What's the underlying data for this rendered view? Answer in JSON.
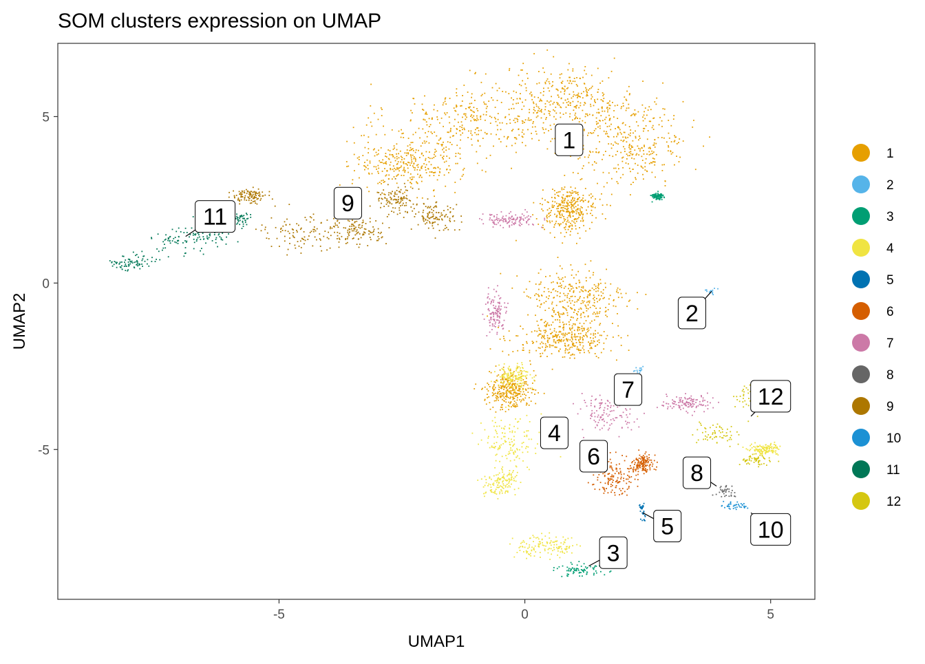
{
  "chart_data": {
    "type": "scatter",
    "title": "SOM clusters expression on UMAP",
    "xlabel": "UMAP1",
    "ylabel": "UMAP2",
    "xlim": [
      -9.5,
      5.9
    ],
    "ylim": [
      -9.5,
      7.2
    ],
    "x_ticks": [
      -5,
      0,
      5
    ],
    "x_tick_labels": [
      "-5",
      "0",
      "5"
    ],
    "y_ticks": [
      5,
      0,
      -5
    ],
    "y_tick_labels": [
      "5",
      "0",
      "-5"
    ],
    "grid": false,
    "legend_position": "right",
    "legend_title": "",
    "series": [
      {
        "name": "1",
        "color": "#E69F00"
      },
      {
        "name": "2",
        "color": "#56B4E9"
      },
      {
        "name": "3",
        "color": "#009E73"
      },
      {
        "name": "4",
        "color": "#F0E442"
      },
      {
        "name": "5",
        "color": "#0072B2"
      },
      {
        "name": "6",
        "color": "#D55E00"
      },
      {
        "name": "7",
        "color": "#CC79A7"
      },
      {
        "name": "8",
        "color": "#666666"
      },
      {
        "name": "9",
        "color": "#AD7700"
      },
      {
        "name": "10",
        "color": "#1C91D4"
      },
      {
        "name": "11",
        "color": "#007756"
      },
      {
        "name": "12",
        "color": "#D5C711"
      }
    ],
    "cluster_regions": [
      {
        "cluster": "1",
        "points": 2600,
        "blobs": [
          [
            -1.0,
            4.9,
            1.6,
            1.0
          ],
          [
            0.9,
            5.5,
            1.2,
            0.9
          ],
          [
            2.2,
            4.2,
            1.0,
            1.2
          ],
          [
            -2.4,
            3.6,
            1.0,
            0.7
          ],
          [
            0.9,
            2.2,
            0.5,
            0.6
          ],
          [
            1.0,
            -0.5,
            1.0,
            0.9
          ],
          [
            0.8,
            -1.7,
            0.9,
            0.5
          ],
          [
            -0.3,
            -3.2,
            0.4,
            0.5
          ]
        ]
      },
      {
        "cluster": "2",
        "points": 30,
        "blobs": [
          [
            3.8,
            -0.25,
            0.12,
            0.08
          ],
          [
            2.3,
            -2.6,
            0.1,
            0.1
          ]
        ]
      },
      {
        "cluster": "3",
        "points": 160,
        "blobs": [
          [
            1.1,
            -8.6,
            0.45,
            0.2
          ],
          [
            2.7,
            2.6,
            0.12,
            0.1
          ]
        ]
      },
      {
        "cluster": "4",
        "points": 650,
        "blobs": [
          [
            -0.3,
            -4.7,
            0.5,
            0.7
          ],
          [
            -0.5,
            -6.0,
            0.3,
            0.4
          ],
          [
            0.4,
            -7.9,
            0.6,
            0.3
          ],
          [
            -0.2,
            -2.8,
            0.3,
            0.3
          ],
          [
            4.9,
            -5.0,
            0.3,
            0.15
          ]
        ]
      },
      {
        "cluster": "5",
        "points": 30,
        "blobs": [
          [
            2.4,
            -6.8,
            0.06,
            0.25
          ]
        ]
      },
      {
        "cluster": "6",
        "points": 280,
        "blobs": [
          [
            1.8,
            -5.8,
            0.4,
            0.5
          ],
          [
            2.4,
            -5.4,
            0.2,
            0.25
          ]
        ]
      },
      {
        "cluster": "7",
        "points": 480,
        "blobs": [
          [
            1.7,
            -3.9,
            0.6,
            0.5
          ],
          [
            -0.6,
            -0.9,
            0.2,
            0.5
          ],
          [
            -0.3,
            1.9,
            0.5,
            0.2
          ],
          [
            3.3,
            -3.6,
            0.5,
            0.2
          ]
        ]
      },
      {
        "cluster": "8",
        "points": 35,
        "blobs": [
          [
            4.1,
            -6.3,
            0.18,
            0.15
          ]
        ]
      },
      {
        "cluster": "9",
        "points": 550,
        "blobs": [
          [
            -4.5,
            1.5,
            0.8,
            0.5
          ],
          [
            -3.4,
            1.6,
            0.5,
            0.4
          ],
          [
            -1.8,
            2.0,
            0.4,
            0.4
          ],
          [
            -5.6,
            2.6,
            0.3,
            0.2
          ],
          [
            -2.6,
            2.5,
            0.4,
            0.4
          ]
        ]
      },
      {
        "cluster": "10",
        "points": 40,
        "blobs": [
          [
            4.3,
            -6.7,
            0.25,
            0.1
          ]
        ]
      },
      {
        "cluster": "11",
        "points": 300,
        "blobs": [
          [
            -7.0,
            1.3,
            0.6,
            0.4
          ],
          [
            -8.0,
            0.6,
            0.4,
            0.2
          ],
          [
            -6.3,
            1.6,
            0.4,
            0.4
          ],
          [
            -5.9,
            1.9,
            0.3,
            0.2
          ]
        ]
      },
      {
        "cluster": "12",
        "points": 180,
        "blobs": [
          [
            4.6,
            -3.5,
            0.3,
            0.4
          ],
          [
            3.9,
            -4.5,
            0.4,
            0.3
          ],
          [
            4.7,
            -5.3,
            0.3,
            0.15
          ]
        ]
      }
    ],
    "annotations": [
      {
        "text": "1",
        "x": 0.9,
        "y": 4.3,
        "tx": 0.9,
        "ty": 4.3
      },
      {
        "text": "2",
        "x": 3.4,
        "y": -0.9,
        "tx": 3.8,
        "ty": -0.25
      },
      {
        "text": "3",
        "x": 1.8,
        "y": -8.1,
        "tx": 1.3,
        "ty": -8.5
      },
      {
        "text": "4",
        "x": 0.6,
        "y": -4.5,
        "tx": 0.6,
        "ty": -4.5
      },
      {
        "text": "5",
        "x": 2.9,
        "y": -7.3,
        "tx": 2.4,
        "ty": -6.9
      },
      {
        "text": "6",
        "x": 1.4,
        "y": -5.2,
        "tx": 1.6,
        "ty": -5.6
      },
      {
        "text": "7",
        "x": 2.1,
        "y": -3.2,
        "tx": 2.0,
        "ty": -3.6
      },
      {
        "text": "8",
        "x": 3.5,
        "y": -5.7,
        "tx": 3.9,
        "ty": -6.1
      },
      {
        "text": "9",
        "x": -3.6,
        "y": 2.4,
        "tx": -3.4,
        "ty": 2.0
      },
      {
        "text": "10",
        "x": 5.0,
        "y": -7.4,
        "tx": 4.6,
        "ty": -6.9
      },
      {
        "text": "11",
        "x": -6.3,
        "y": 2.0,
        "tx": -6.9,
        "ty": 1.4
      },
      {
        "text": "12",
        "x": 5.0,
        "y": -3.4,
        "tx": 4.6,
        "ty": -4.0
      }
    ]
  }
}
